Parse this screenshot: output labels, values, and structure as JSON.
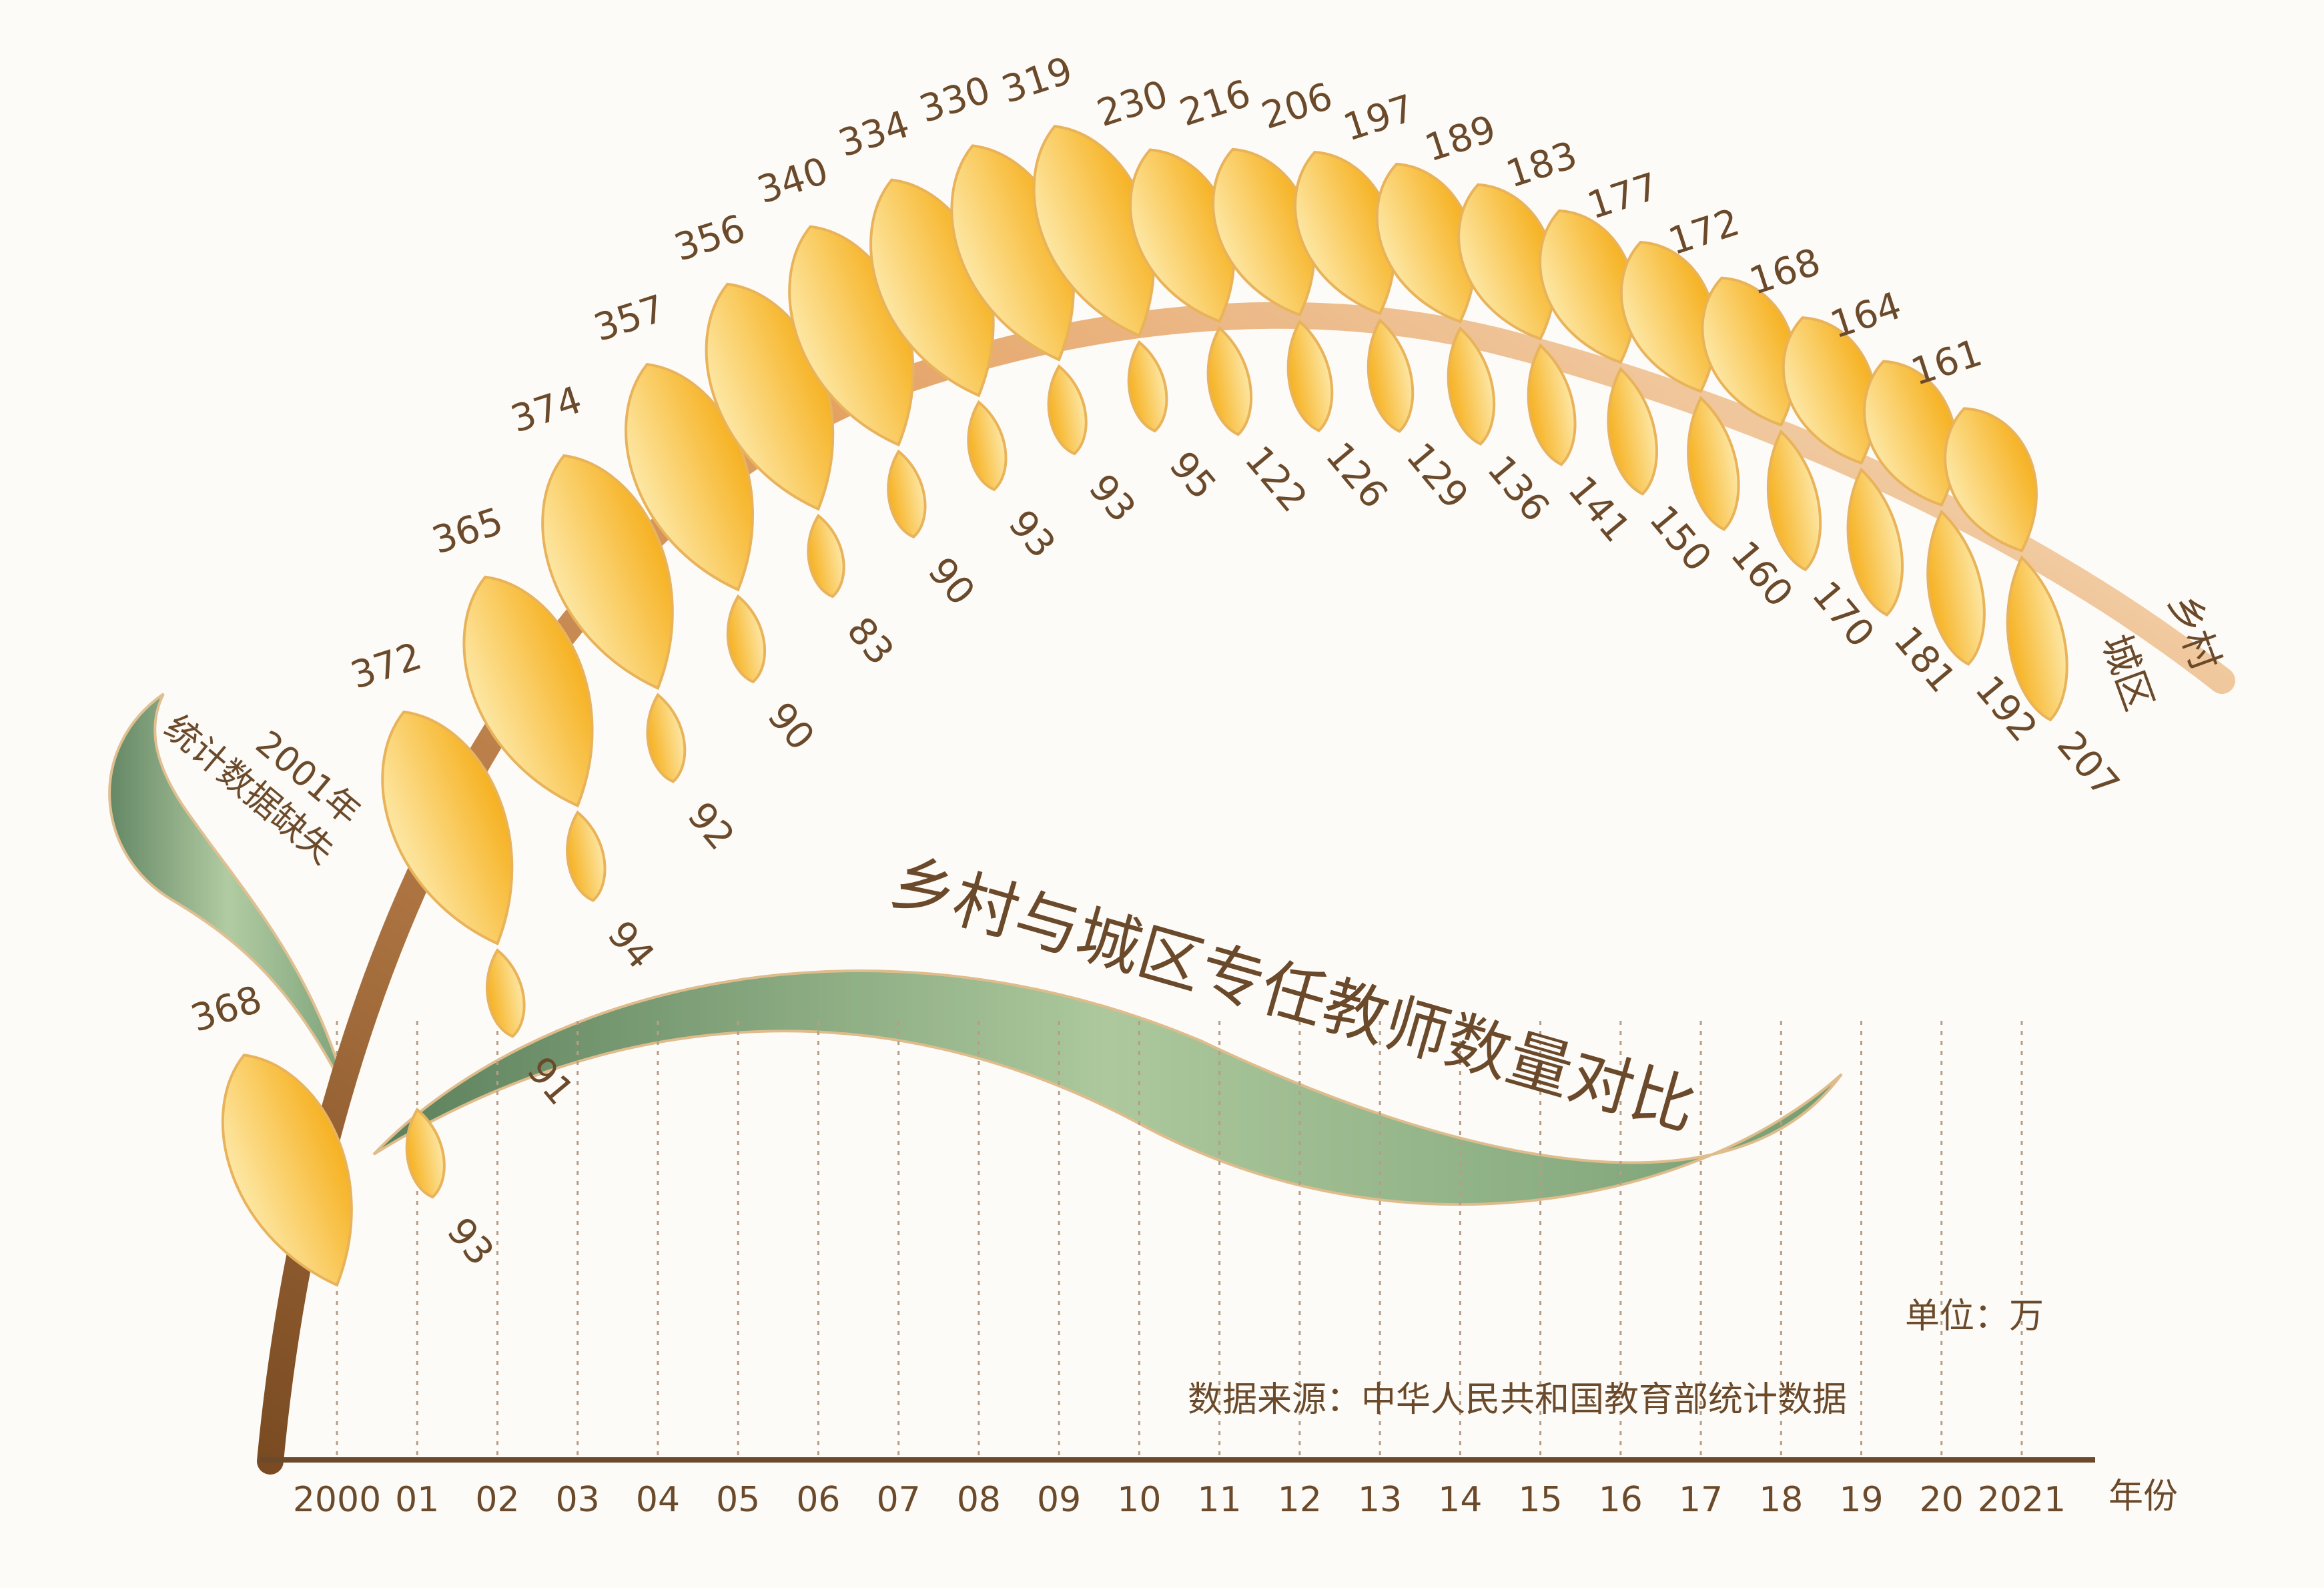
{
  "chart_data": {
    "type": "bar",
    "title": "乡村与城区专任教师数量对比",
    "unit_label": "单位：万",
    "source_label": "数据来源：中华人民共和国教育部统计数据",
    "x_axis_unit": "年份",
    "missing_note_lines": [
      "2001年",
      "统计数据缺失"
    ],
    "categories": [
      "2000",
      "01",
      "02",
      "03",
      "04",
      "05",
      "06",
      "07",
      "08",
      "09",
      "10",
      "11",
      "12",
      "13",
      "14",
      "15",
      "16",
      "17",
      "18",
      "19",
      "20",
      "2021"
    ],
    "series": [
      {
        "name": "乡村",
        "values": [
          368,
          null,
          372,
          365,
          374,
          357,
          356,
          340,
          334,
          330,
          319,
          230,
          216,
          206,
          197,
          189,
          183,
          177,
          172,
          168,
          164,
          161
        ]
      },
      {
        "name": "城区",
        "values": [
          null,
          93,
          91,
          94,
          92,
          90,
          83,
          90,
          93,
          93,
          95,
          122,
          126,
          129,
          136,
          141,
          150,
          160,
          170,
          181,
          192,
          207
        ]
      }
    ],
    "colors": {
      "rural": "#f6b82a",
      "urban": "#f8c74a",
      "stem": "#c98a4e",
      "text": "#6b4a2b",
      "leaf": "#7fa66a"
    }
  }
}
